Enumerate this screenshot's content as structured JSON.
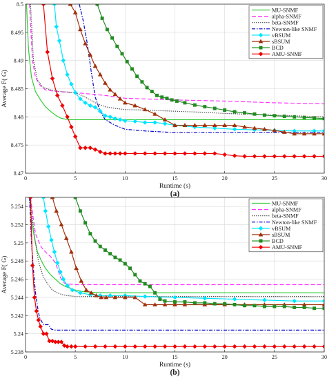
{
  "chart_data": [
    {
      "type": "line",
      "caption": "(a)",
      "xlabel": "Runtime (s)",
      "ylabel": "Average  F( G)",
      "xlim": [
        0,
        30
      ],
      "ylim": [
        8.47,
        8.5
      ],
      "xticks": [
        0,
        5,
        10,
        15,
        20,
        25,
        30
      ],
      "yticks": [
        8.47,
        8.475,
        8.48,
        8.485,
        8.49,
        8.495,
        8.5
      ],
      "ytick_labels": [
        "8.47",
        "8.475",
        "8.48",
        "8.485",
        "8.49",
        "8.495",
        "8.5"
      ],
      "grid": true,
      "legend_position": "top-right",
      "series": [
        {
          "name": "MU-SNMF",
          "color": "#33cc33",
          "dash": "solid",
          "marker": "none",
          "x": [
            0.1,
            0.3,
            0.6,
            1,
            1.5,
            2,
            2.5,
            3,
            3.5,
            4,
            4.5,
            5,
            6,
            8,
            10,
            15,
            20,
            25,
            30
          ],
          "y": [
            8.5,
            8.492,
            8.487,
            8.4845,
            8.483,
            8.4818,
            8.481,
            8.4803,
            8.4798,
            8.4796,
            8.4795,
            8.4795,
            8.4795,
            8.4795,
            8.4795,
            8.4795,
            8.4795,
            8.4795,
            8.4795
          ]
        },
        {
          "name": "alpha-SNMF",
          "color": "#ff33ff",
          "dash": "6,3",
          "marker": "none",
          "x": [
            0.4,
            0.7,
            1,
            1.5,
            2,
            3,
            5,
            8,
            10,
            15,
            20,
            25,
            30
          ],
          "y": [
            8.5,
            8.49,
            8.487,
            8.4855,
            8.4848,
            8.4845,
            8.4843,
            8.4838,
            8.4833,
            8.483,
            8.4828,
            8.4825,
            8.4823
          ]
        },
        {
          "name": "beta-SNMF",
          "color": "#555555",
          "dash": "1.5,1.5",
          "marker": "none",
          "x": [
            0.5,
            0.8,
            1.2,
            1.8,
            2.5,
            3.5,
            5,
            6,
            7,
            8,
            9,
            10,
            12,
            15,
            18,
            20,
            25,
            30
          ],
          "y": [
            8.5,
            8.49,
            8.4865,
            8.4852,
            8.4848,
            8.4845,
            8.4843,
            8.4835,
            8.4825,
            8.4818,
            8.4815,
            8.4813,
            8.4812,
            8.481,
            8.4808,
            8.4806,
            8.4803,
            8.48
          ]
        },
        {
          "name": "Newton-like SNMF",
          "color": "#0000cc",
          "dash": "5,2,1.5,2",
          "marker": "none",
          "x": [
            5.4,
            5.8,
            6.2,
            6.6,
            7,
            7.5,
            8,
            9,
            10,
            12,
            15,
            20,
            25,
            30
          ],
          "y": [
            8.5,
            8.497,
            8.493,
            8.488,
            8.4835,
            8.481,
            8.4795,
            8.4785,
            8.4778,
            8.4775,
            8.4772,
            8.4772,
            8.4772,
            8.4772
          ]
        },
        {
          "name": "vBSUM",
          "color": "#00e5ff",
          "dash": "solid",
          "marker": "diamond",
          "x": [
            2.9,
            3.1,
            3.4,
            3.8,
            4.2,
            4.6,
            5,
            5.5,
            6,
            6.5,
            7,
            7.5,
            8,
            8.5,
            9,
            9.5,
            10,
            11,
            12,
            13,
            14,
            15,
            17,
            19,
            21,
            23,
            25,
            27,
            29,
            30
          ],
          "y": [
            8.5,
            8.496,
            8.4935,
            8.49,
            8.4875,
            8.4858,
            8.4843,
            8.4832,
            8.4825,
            8.482,
            8.4817,
            8.481,
            8.4802,
            8.48,
            8.4797,
            8.4795,
            8.4793,
            8.4792,
            8.479,
            8.479,
            8.4788,
            8.4785,
            8.4782,
            8.478,
            8.4778,
            8.4777,
            8.4776,
            8.4775,
            8.4775,
            8.4775
          ]
        },
        {
          "name": "sBSUM",
          "color": "#a0300a",
          "dash": "solid",
          "marker": "triangle",
          "x": [
            4.5,
            5,
            5.5,
            6,
            6.5,
            7,
            7.5,
            8,
            8.5,
            9,
            9.5,
            10,
            11,
            12,
            13,
            14,
            15,
            16,
            17,
            18,
            19,
            20,
            21,
            22,
            23,
            24,
            25,
            26,
            27,
            28,
            29,
            30
          ],
          "y": [
            8.5,
            8.4985,
            8.4955,
            8.493,
            8.491,
            8.489,
            8.4875,
            8.486,
            8.4848,
            8.484,
            8.4832,
            8.4825,
            8.482,
            8.4813,
            8.4805,
            8.4795,
            8.4785,
            8.4785,
            8.4785,
            8.4785,
            8.4785,
            8.4785,
            8.4785,
            8.4782,
            8.478,
            8.4778,
            8.4776,
            8.4773,
            8.477,
            8.477,
            8.477,
            8.477
          ]
        },
        {
          "name": "BCD",
          "color": "#228b22",
          "dash": "solid",
          "marker": "square",
          "x": [
            7.2,
            7.7,
            8.2,
            8.7,
            9.2,
            9.7,
            10.2,
            10.7,
            11.2,
            11.7,
            12.2,
            12.7,
            13.2,
            13.7,
            14.2,
            14.7,
            15.2,
            16,
            17,
            18,
            19,
            20,
            21,
            22,
            23,
            24,
            25,
            26,
            27,
            28,
            29,
            30
          ],
          "y": [
            8.5,
            8.4975,
            8.4955,
            8.494,
            8.4925,
            8.4912,
            8.4898,
            8.4885,
            8.4872,
            8.4862,
            8.4852,
            8.4845,
            8.4838,
            8.4835,
            8.4833,
            8.483,
            8.4828,
            8.4825,
            8.4821,
            8.4818,
            8.4815,
            8.4812,
            8.4809,
            8.4807,
            8.4805,
            8.4803,
            8.4802,
            8.4801,
            8.48,
            8.4799,
            8.4798,
            8.4797
          ]
        },
        {
          "name": "AMU-SNMF",
          "color": "#ee0000",
          "dash": "solid",
          "marker": "diamond",
          "x": [
            1.8,
            2.2,
            2.7,
            3.2,
            3.7,
            4.2,
            4.6,
            5,
            5.5,
            6,
            6.5,
            7,
            7.5,
            8,
            8.5,
            9,
            9.5,
            10,
            11,
            12,
            13,
            14,
            15,
            16,
            17,
            18,
            19,
            20,
            21,
            22,
            23,
            24,
            25,
            26,
            27,
            28,
            29,
            30
          ],
          "y": [
            8.5,
            8.4915,
            8.4868,
            8.4838,
            8.482,
            8.48,
            8.4782,
            8.4765,
            8.4745,
            8.4745,
            8.4745,
            8.4742,
            8.4738,
            8.4735,
            8.4735,
            8.4735,
            8.4735,
            8.4735,
            8.4735,
            8.4735,
            8.4735,
            8.4735,
            8.4735,
            8.4735,
            8.4735,
            8.4735,
            8.4735,
            8.4733,
            8.4731,
            8.473,
            8.473,
            8.473,
            8.473,
            8.473,
            8.473,
            8.473,
            8.473,
            8.473
          ]
        }
      ]
    },
    {
      "type": "line",
      "caption": "(b)",
      "xlabel": "Runtime (s)",
      "ylabel": "Average  F( G)",
      "xlim": [
        0,
        30
      ],
      "ylim": [
        5.238,
        5.255
      ],
      "xticks": [
        0,
        5,
        10,
        15,
        20,
        25,
        30
      ],
      "yticks": [
        5.238,
        5.24,
        5.242,
        5.244,
        5.246,
        5.248,
        5.25,
        5.252,
        5.254
      ],
      "ytick_labels": [
        "5.238",
        "5.24",
        "5.242",
        "5.244",
        "5.246",
        "5.248",
        "5.25",
        "5.252",
        "5.254"
      ],
      "grid": true,
      "legend_position": "top-right",
      "series": [
        {
          "name": "MU-SNMF",
          "color": "#33cc33",
          "dash": "solid",
          "marker": "none",
          "x": [
            0.4,
            0.6,
            0.9,
            1.2,
            1.6,
            2,
            2.5,
            3,
            3.5,
            4,
            5,
            6,
            8,
            10,
            15,
            20,
            25,
            30
          ],
          "y": [
            5.255,
            5.2525,
            5.2505,
            5.249,
            5.248,
            5.2472,
            5.2465,
            5.246,
            5.2455,
            5.2452,
            5.2448,
            5.2446,
            5.2445,
            5.2445,
            5.2445,
            5.2445,
            5.2445,
            5.2445
          ]
        },
        {
          "name": "alpha-SNMF",
          "color": "#ff33ff",
          "dash": "6,3",
          "marker": "none",
          "x": [
            0.5,
            0.8,
            1,
            1.3,
            1.6,
            2,
            2.5,
            3,
            3.2,
            3.5,
            3.7,
            4,
            5,
            8,
            10,
            15,
            20,
            25,
            30
          ],
          "y": [
            5.255,
            5.2525,
            5.251,
            5.2502,
            5.2495,
            5.249,
            5.2485,
            5.2478,
            5.2472,
            5.2462,
            5.2458,
            5.2455,
            5.2454,
            5.2454,
            5.2454,
            5.2454,
            5.2454,
            5.2454,
            5.2454
          ]
        },
        {
          "name": "beta-SNMF",
          "color": "#555555",
          "dash": "1.5,1.5",
          "marker": "none",
          "x": [
            0.5,
            0.7,
            1,
            1.3,
            1.7,
            2.2,
            2.7,
            3.2,
            3.7,
            4.2,
            5,
            6,
            8,
            10,
            15,
            20,
            25,
            30
          ],
          "y": [
            5.255,
            5.2525,
            5.25,
            5.248,
            5.2465,
            5.2455,
            5.2448,
            5.2445,
            5.2443,
            5.2442,
            5.2441,
            5.2441,
            5.2441,
            5.2441,
            5.2441,
            5.2441,
            5.2441,
            5.2441
          ]
        },
        {
          "name": "Newton-like SNMF",
          "color": "#0000cc",
          "dash": "5,2,1.5,2",
          "marker": "none",
          "x": [
            0.4,
            0.6,
            0.8,
            1,
            1.2,
            1.4,
            1.8,
            2.3,
            2.6,
            3,
            5,
            10,
            15,
            20,
            25,
            30
          ],
          "y": [
            5.255,
            5.25,
            5.247,
            5.2445,
            5.243,
            5.2418,
            5.241,
            5.241,
            5.2405,
            5.2404,
            5.2404,
            5.2404,
            5.2404,
            5.2404,
            5.2404,
            5.2404
          ]
        },
        {
          "name": "vBSUM",
          "color": "#00e5ff",
          "dash": "solid",
          "marker": "diamond",
          "x": [
            1.8,
            2,
            2.3,
            2.6,
            2.9,
            3.2,
            3.5,
            3.8,
            4.2,
            4.7,
            5.5,
            6.5,
            7.5,
            8.5,
            10,
            12,
            15,
            18,
            21,
            24,
            27,
            30
          ],
          "y": [
            5.255,
            5.2535,
            5.2518,
            5.2503,
            5.249,
            5.2478,
            5.2468,
            5.246,
            5.2453,
            5.2448,
            5.2445,
            5.2443,
            5.2442,
            5.2442,
            5.2442,
            5.2441,
            5.244,
            5.2439,
            5.2438,
            5.2437,
            5.2436,
            5.2436
          ]
        },
        {
          "name": "sBSUM",
          "color": "#a0300a",
          "dash": "solid",
          "marker": "triangle",
          "x": [
            2.7,
            3.1,
            3.6,
            4.1,
            4.6,
            5.1,
            5.6,
            6.1,
            6.6,
            7.1,
            7.6,
            8.1,
            9,
            10,
            11,
            12,
            13,
            14,
            15,
            16,
            18,
            20,
            22,
            24,
            26,
            28,
            30
          ],
          "y": [
            5.255,
            5.2535,
            5.252,
            5.2505,
            5.249,
            5.2472,
            5.2458,
            5.2448,
            5.2445,
            5.2442,
            5.244,
            5.244,
            5.244,
            5.244,
            5.244,
            5.2432,
            5.2432,
            5.2432,
            5.2432,
            5.2432,
            5.2432,
            5.2432,
            5.2432,
            5.2432,
            5.2432,
            5.2432,
            5.2432
          ]
        },
        {
          "name": "BCD",
          "color": "#228b22",
          "dash": "solid",
          "marker": "square",
          "x": [
            5,
            5.5,
            6,
            6.5,
            7,
            7.5,
            8,
            8.5,
            9,
            9.5,
            10,
            10.5,
            11,
            11.5,
            12,
            12.5,
            13,
            13.5,
            14,
            15,
            16,
            17,
            18,
            19,
            20,
            21,
            22,
            23,
            24,
            25,
            26,
            27,
            28,
            29,
            30
          ],
          "y": [
            5.255,
            5.2535,
            5.2522,
            5.251,
            5.2502,
            5.2496,
            5.2492,
            5.2488,
            5.2484,
            5.2481,
            5.2477,
            5.2472,
            5.2465,
            5.2458,
            5.2455,
            5.2452,
            5.2445,
            5.2438,
            5.2436,
            5.2435,
            5.2435,
            5.2434,
            5.2434,
            5.2433,
            5.2433,
            5.2432,
            5.2431,
            5.2431,
            5.243,
            5.243,
            5.243,
            5.2429,
            5.2429,
            5.2428,
            5.2428
          ]
        },
        {
          "name": "AMU-SNMF",
          "color": "#ee0000",
          "dash": "solid",
          "marker": "diamond",
          "x": [
            0.5,
            0.7,
            0.9,
            1.1,
            1.3,
            1.5,
            1.8,
            2.1,
            2.4,
            2.7,
            3,
            3.3,
            3.6,
            3.9,
            4.2,
            4.6,
            5,
            6,
            7,
            8,
            9,
            10,
            11,
            12,
            13,
            14,
            15,
            16,
            17,
            18,
            19,
            20,
            21,
            22,
            23,
            24,
            25,
            26,
            27,
            28,
            29,
            30
          ],
          "y": [
            5.255,
            5.2475,
            5.244,
            5.2425,
            5.2415,
            5.2408,
            5.24,
            5.24,
            5.2392,
            5.2392,
            5.2391,
            5.2391,
            5.2391,
            5.2387,
            5.2386,
            5.2386,
            5.2386,
            5.2386,
            5.2386,
            5.2386,
            5.2386,
            5.2386,
            5.2386,
            5.2386,
            5.2386,
            5.2386,
            5.2386,
            5.2386,
            5.2386,
            5.2386,
            5.2386,
            5.2386,
            5.2386,
            5.2386,
            5.2386,
            5.2386,
            5.2386,
            5.2386,
            5.2386,
            5.2386,
            5.2386,
            5.2386
          ]
        }
      ]
    }
  ]
}
